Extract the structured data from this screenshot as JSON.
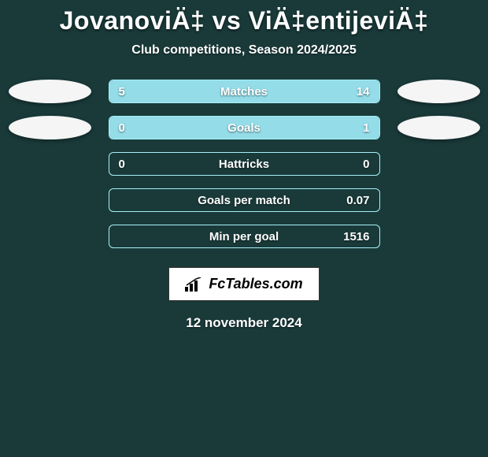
{
  "background_color": "#1a3a3a",
  "bar_fill_color": "#93dce8",
  "bar_border_color": "#a6f0f7",
  "avatar_color": "#f5f5f5",
  "title": "JovanoviÄ‡ vs ViÄ‡entijeviÄ‡",
  "subtitle": "Club competitions, Season 2024/2025",
  "logo_text": "FcTables.com",
  "date": "12 november 2024",
  "rows": [
    {
      "label": "Matches",
      "left_value": "5",
      "right_value": "14",
      "left_fill_pct": 26,
      "right_fill_pct": 74,
      "show_left_avatar": true,
      "show_right_avatar": true
    },
    {
      "label": "Goals",
      "left_value": "0",
      "right_value": "1",
      "left_fill_pct": 0,
      "right_fill_pct": 100,
      "show_left_avatar": true,
      "show_right_avatar": true
    },
    {
      "label": "Hattricks",
      "left_value": "0",
      "right_value": "0",
      "left_fill_pct": 0,
      "right_fill_pct": 0,
      "show_left_avatar": false,
      "show_right_avatar": false
    },
    {
      "label": "Goals per match",
      "left_value": "",
      "right_value": "0.07",
      "left_fill_pct": 0,
      "right_fill_pct": 0,
      "show_left_avatar": false,
      "show_right_avatar": false
    },
    {
      "label": "Min per goal",
      "left_value": "",
      "right_value": "1516",
      "left_fill_pct": 0,
      "right_fill_pct": 0,
      "show_left_avatar": false,
      "show_right_avatar": false
    }
  ]
}
